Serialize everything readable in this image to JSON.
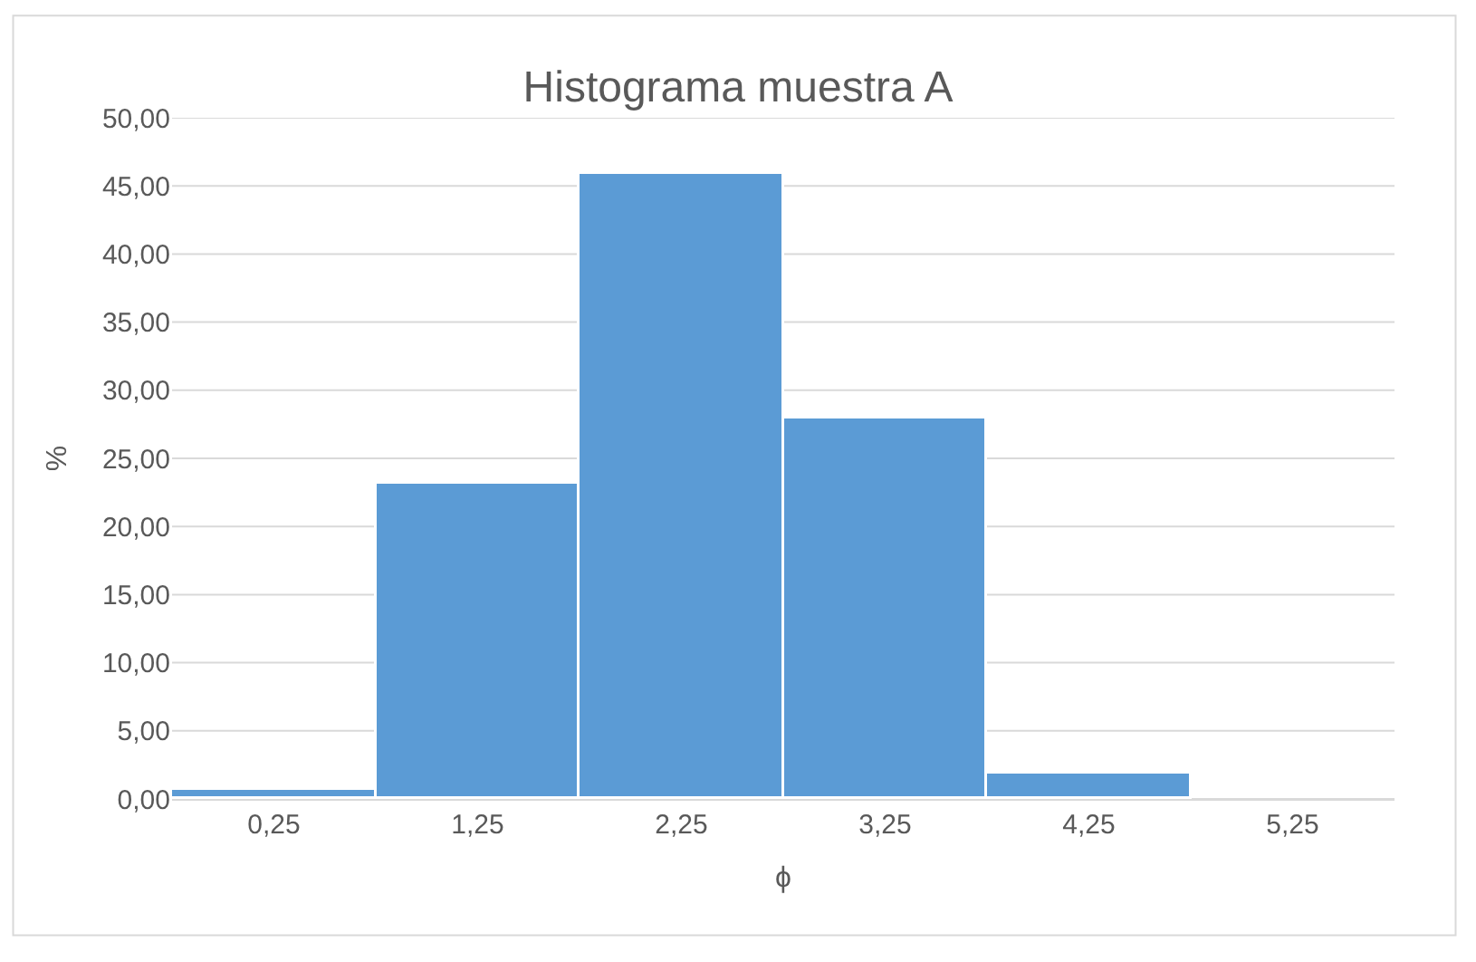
{
  "chart_data": {
    "type": "bar",
    "title": "Histograma muestra A",
    "xlabel": "ϕ",
    "ylabel": "%",
    "categories": [
      "0,25",
      "1,25",
      "2,25",
      "3,25",
      "4,25",
      "5,25"
    ],
    "values": [
      0.7,
      23.1,
      45.9,
      27.9,
      1.9,
      null
    ],
    "color": "#5b9bd5",
    "ylim": [
      0,
      50
    ],
    "yticks": [
      {
        "value": 0,
        "label": "0,00"
      },
      {
        "value": 5,
        "label": "5,00"
      },
      {
        "value": 10,
        "label": "10,00"
      },
      {
        "value": 15,
        "label": "15,00"
      },
      {
        "value": 20,
        "label": "20,00"
      },
      {
        "value": 25,
        "label": "25,00"
      },
      {
        "value": 30,
        "label": "30,00"
      },
      {
        "value": 35,
        "label": "35,00"
      },
      {
        "value": 40,
        "label": "40,00"
      },
      {
        "value": 45,
        "label": "45,00"
      },
      {
        "value": 50,
        "label": "50,00"
      }
    ],
    "grid": "y",
    "legend": false
  }
}
